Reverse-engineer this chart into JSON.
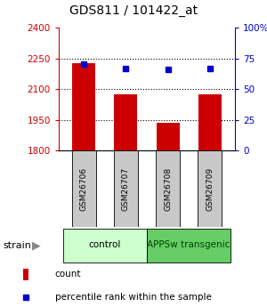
{
  "title": "GDS811 / 101422_at",
  "samples": [
    "GSM26706",
    "GSM26707",
    "GSM26708",
    "GSM26709"
  ],
  "counts": [
    2225,
    2075,
    1935,
    2075
  ],
  "percentiles": [
    70,
    67,
    66,
    67
  ],
  "ylim_left": [
    1800,
    2400
  ],
  "ylim_right": [
    0,
    100
  ],
  "yticks_left": [
    1800,
    1950,
    2100,
    2250,
    2400
  ],
  "ytick_labels_left": [
    "1800",
    "1950",
    "2100",
    "2250",
    "2400"
  ],
  "yticks_right": [
    0,
    25,
    50,
    75,
    100
  ],
  "ytick_labels_right": [
    "0",
    "25",
    "50",
    "75",
    "100%"
  ],
  "bar_color": "#cc0000",
  "dot_color": "#0000cc",
  "bar_width": 0.55,
  "group_defs": [
    {
      "label": "control",
      "xmin": -0.5,
      "xmax": 1.5,
      "color": "#ccffcc",
      "text_color": "#000000"
    },
    {
      "label": "APPSw transgenic",
      "xmin": 1.5,
      "xmax": 3.5,
      "color": "#66cc66",
      "text_color": "#004400"
    }
  ],
  "legend_items": [
    "count",
    "percentile rank within the sample"
  ],
  "legend_colors": [
    "#cc0000",
    "#0000cc"
  ],
  "gray_color": "#c8c8c8"
}
